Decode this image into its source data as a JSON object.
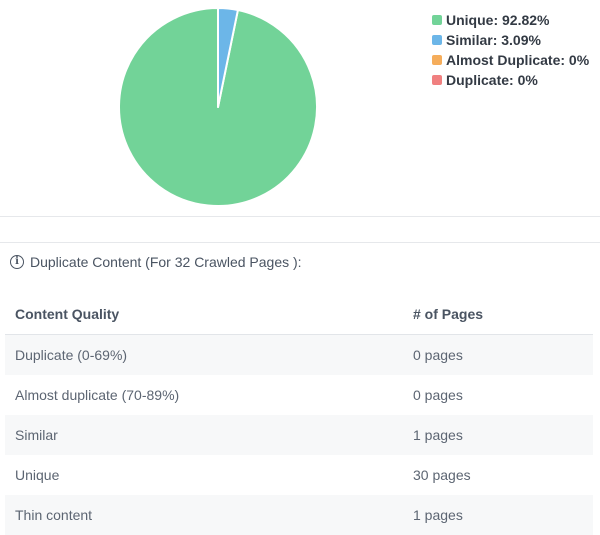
{
  "chart_data": {
    "type": "pie",
    "series": [
      {
        "name": "Unique",
        "value": 92.82,
        "color": "#72d398"
      },
      {
        "name": "Similar",
        "value": 3.09,
        "color": "#6cb6e8"
      },
      {
        "name": "Almost Duplicate",
        "value": 0,
        "color": "#f5ad5b"
      },
      {
        "name": "Duplicate",
        "value": 0,
        "color": "#f08080"
      }
    ],
    "legend": [
      "Unique: 92.82%",
      "Similar: 3.09%",
      "Almost Duplicate: 0%",
      "Duplicate: 0%"
    ],
    "legend_position": "top-right"
  },
  "section": {
    "icon": "info-icon",
    "heading": "Duplicate Content (For 32 Crawled Pages ):"
  },
  "table": {
    "headers": [
      "Content Quality",
      "# of Pages"
    ],
    "rows": [
      [
        "Duplicate (0-69%)",
        "0 pages"
      ],
      [
        "Almost duplicate (70-89%)",
        "0 pages"
      ],
      [
        "Similar",
        "1 pages"
      ],
      [
        "Unique",
        "30 pages"
      ],
      [
        "Thin content",
        "1 pages"
      ]
    ]
  }
}
